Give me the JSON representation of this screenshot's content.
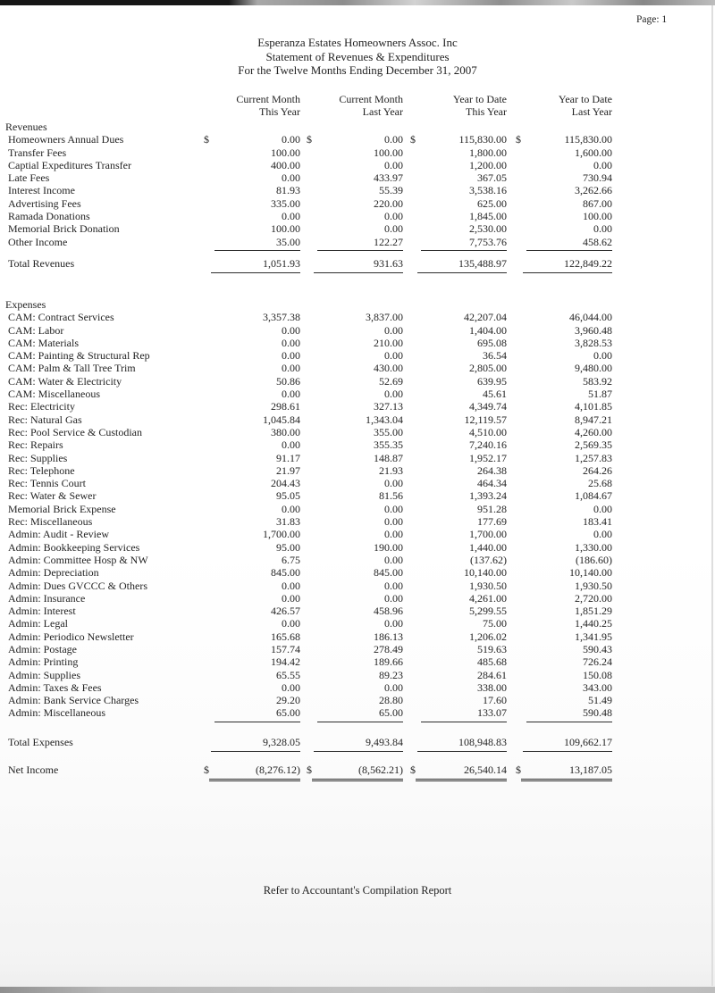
{
  "page": {
    "page_label": "Page: 1",
    "footer": "Refer to Accountant's Compilation Report"
  },
  "header": {
    "org": "Esperanza Estates Homeowners Assoc. Inc",
    "report": "Statement of Revenues & Expenditures",
    "period": "For the Twelve Months Ending December 31, 2007"
  },
  "columns": [
    {
      "line1": "Current Month",
      "line2": "This Year"
    },
    {
      "line1": "Current Month",
      "line2": "Last Year"
    },
    {
      "line1": "Year to Date",
      "line2": "This Year"
    },
    {
      "line1": "Year to Date",
      "line2": "Last Year"
    }
  ],
  "revenues": {
    "section_label": "Revenues",
    "rows": [
      {
        "label": "Homeowners Annual Dues",
        "dollar": true,
        "values": [
          "0.00",
          "0.00",
          "115,830.00",
          "115,830.00"
        ]
      },
      {
        "label": "Transfer Fees",
        "values": [
          "100.00",
          "100.00",
          "1,800.00",
          "1,600.00"
        ]
      },
      {
        "label": "Captial Expeditures Transfer",
        "values": [
          "400.00",
          "0.00",
          "1,200.00",
          "0.00"
        ]
      },
      {
        "label": "Late Fees",
        "values": [
          "0.00",
          "433.97",
          "367.05",
          "730.94"
        ]
      },
      {
        "label": "Interest Income",
        "values": [
          "81.93",
          "55.39",
          "3,538.16",
          "3,262.66"
        ]
      },
      {
        "label": "Advertising Fees",
        "values": [
          "335.00",
          "220.00",
          "625.00",
          "867.00"
        ]
      },
      {
        "label": "Ramada Donations",
        "values": [
          "0.00",
          "0.00",
          "1,845.00",
          "100.00"
        ]
      },
      {
        "label": "Memorial Brick Donation",
        "values": [
          "100.00",
          "0.00",
          "2,530.00",
          "0.00"
        ]
      },
      {
        "label": "Other Income",
        "values": [
          "35.00",
          "122.27",
          "7,753.76",
          "458.62"
        ]
      }
    ],
    "total": {
      "label": "Total Revenues",
      "values": [
        "1,051.93",
        "931.63",
        "135,488.97",
        "122,849.22"
      ]
    }
  },
  "expenses": {
    "section_label": "Expenses",
    "rows": [
      {
        "label": "CAM: Contract Services",
        "values": [
          "3,357.38",
          "3,837.00",
          "42,207.04",
          "46,044.00"
        ]
      },
      {
        "label": "CAM: Labor",
        "values": [
          "0.00",
          "0.00",
          "1,404.00",
          "3,960.48"
        ]
      },
      {
        "label": "CAM: Materials",
        "values": [
          "0.00",
          "210.00",
          "695.08",
          "3,828.53"
        ]
      },
      {
        "label": "CAM: Painting & Structural Rep",
        "values": [
          "0.00",
          "0.00",
          "36.54",
          "0.00"
        ]
      },
      {
        "label": "CAM: Palm & Tall Tree Trim",
        "values": [
          "0.00",
          "430.00",
          "2,805.00",
          "9,480.00"
        ]
      },
      {
        "label": "CAM: Water & Electricity",
        "values": [
          "50.86",
          "52.69",
          "639.95",
          "583.92"
        ]
      },
      {
        "label": "CAM: Miscellaneous",
        "values": [
          "0.00",
          "0.00",
          "45.61",
          "51.87"
        ]
      },
      {
        "label": "Rec: Electricity",
        "values": [
          "298.61",
          "327.13",
          "4,349.74",
          "4,101.85"
        ]
      },
      {
        "label": "Rec: Natural Gas",
        "values": [
          "1,045.84",
          "1,343.04",
          "12,119.57",
          "8,947.21"
        ]
      },
      {
        "label": "Rec: Pool Service & Custodian",
        "values": [
          "380.00",
          "355.00",
          "4,510.00",
          "4,260.00"
        ]
      },
      {
        "label": "Rec: Repairs",
        "values": [
          "0.00",
          "355.35",
          "7,240.16",
          "2,569.35"
        ]
      },
      {
        "label": "Rec: Supplies",
        "values": [
          "91.17",
          "148.87",
          "1,952.17",
          "1,257.83"
        ]
      },
      {
        "label": "Rec: Telephone",
        "values": [
          "21.97",
          "21.93",
          "264.38",
          "264.26"
        ]
      },
      {
        "label": "Rec: Tennis Court",
        "values": [
          "204.43",
          "0.00",
          "464.34",
          "25.68"
        ]
      },
      {
        "label": "Rec: Water & Sewer",
        "values": [
          "95.05",
          "81.56",
          "1,393.24",
          "1,084.67"
        ]
      },
      {
        "label": "Memorial Brick Expense",
        "values": [
          "0.00",
          "0.00",
          "951.28",
          "0.00"
        ]
      },
      {
        "label": "Rec: Miscellaneous",
        "values": [
          "31.83",
          "0.00",
          "177.69",
          "183.41"
        ]
      },
      {
        "label": "Admin: Audit - Review",
        "values": [
          "1,700.00",
          "0.00",
          "1,700.00",
          "0.00"
        ]
      },
      {
        "label": "Admin: Bookkeeping Services",
        "values": [
          "95.00",
          "190.00",
          "1,440.00",
          "1,330.00"
        ]
      },
      {
        "label": "Admin: Committee Hosp & NW",
        "values": [
          "6.75",
          "0.00",
          "(137.62)",
          "(186.60)"
        ]
      },
      {
        "label": "Admin: Depreciation",
        "values": [
          "845.00",
          "845.00",
          "10,140.00",
          "10,140.00"
        ]
      },
      {
        "label": "Admin: Dues GVCCC & Others",
        "values": [
          "0.00",
          "0.00",
          "1,930.50",
          "1,930.50"
        ]
      },
      {
        "label": "Admin: Insurance",
        "values": [
          "0.00",
          "0.00",
          "4,261.00",
          "2,720.00"
        ]
      },
      {
        "label": "Admin: Interest",
        "values": [
          "426.57",
          "458.96",
          "5,299.55",
          "1,851.29"
        ]
      },
      {
        "label": "Admin: Legal",
        "values": [
          "0.00",
          "0.00",
          "75.00",
          "1,440.25"
        ]
      },
      {
        "label": "Admin: Periodico Newsletter",
        "values": [
          "165.68",
          "186.13",
          "1,206.02",
          "1,341.95"
        ]
      },
      {
        "label": "Admin: Postage",
        "values": [
          "157.74",
          "278.49",
          "519.63",
          "590.43"
        ]
      },
      {
        "label": "Admin: Printing",
        "values": [
          "194.42",
          "189.66",
          "485.68",
          "726.24"
        ]
      },
      {
        "label": "Admin: Supplies",
        "values": [
          "65.55",
          "89.23",
          "284.61",
          "150.08"
        ]
      },
      {
        "label": "Admin: Taxes & Fees",
        "values": [
          "0.00",
          "0.00",
          "338.00",
          "343.00"
        ]
      },
      {
        "label": "Admin: Bank Service Charges",
        "values": [
          "29.20",
          "28.80",
          "17.60",
          "51.49"
        ]
      },
      {
        "label": "Admin: Miscellaneous",
        "values": [
          "65.00",
          "65.00",
          "133.07",
          "590.48"
        ]
      }
    ],
    "total": {
      "label": "Total Expenses",
      "values": [
        "9,328.05",
        "9,493.84",
        "108,948.83",
        "109,662.17"
      ]
    }
  },
  "net_income": {
    "label": "Net Income",
    "dollar": true,
    "values": [
      "(8,276.12)",
      "(8,562.21)",
      "26,540.14",
      "13,187.05"
    ]
  }
}
